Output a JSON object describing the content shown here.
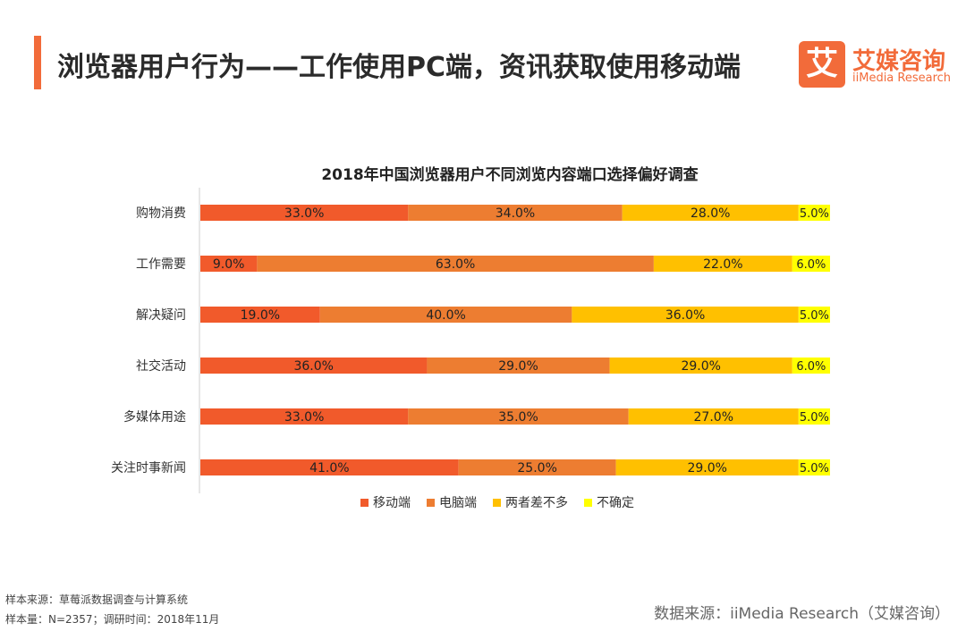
{
  "header": {
    "title": "浏览器用户行为——工作使用PC端，资讯获取使用移动端",
    "accent_color": "#F26B3A"
  },
  "logo": {
    "mark": "艾",
    "name": "艾媒咨询",
    "sub": "iiMedia Research",
    "color": "#F26B3A"
  },
  "chart_data": {
    "type": "bar",
    "orientation": "horizontal-stacked-100",
    "title": "2018年中国浏览器用户不同浏览内容端口选择偏好调查",
    "categories": [
      "购物消费",
      "工作需要",
      "解决疑问",
      "社交活动",
      "多媒体用途",
      "关注时事新闻"
    ],
    "series": [
      {
        "name": "移动端",
        "color": "#F15A2B",
        "values": [
          33.0,
          9.0,
          19.0,
          36.0,
          33.0,
          41.0
        ]
      },
      {
        "name": "电脑端",
        "color": "#ED7D31",
        "values": [
          34.0,
          63.0,
          40.0,
          29.0,
          35.0,
          25.0
        ]
      },
      {
        "name": "两者差不多",
        "color": "#FFC000",
        "values": [
          28.0,
          22.0,
          36.0,
          29.0,
          27.0,
          29.0
        ]
      },
      {
        "name": "不确定",
        "color": "#FFFF00",
        "values": [
          5.0,
          6.0,
          5.0,
          6.0,
          5.0,
          5.0
        ]
      }
    ],
    "xlim": [
      0,
      100
    ],
    "value_suffix": "%",
    "legend_position": "bottom"
  },
  "footer": {
    "sample_source": "样本来源：草莓派数据调查与计算系统",
    "sample_info": "样本量：N=2357；调研时间：2018年11月",
    "data_source": "数据来源：iiMedia Research（艾媒咨询）"
  }
}
